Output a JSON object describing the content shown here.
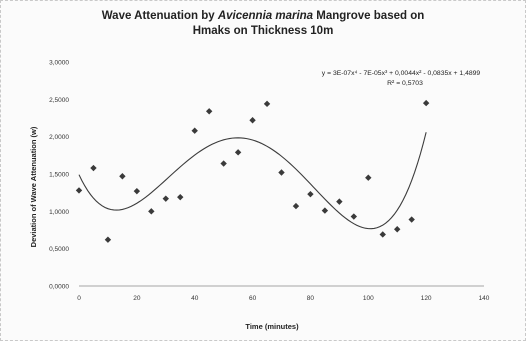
{
  "chart_data": {
    "type": "scatter",
    "title_prefix": "Wave Attenuation by ",
    "title_species": "Avicennia marina",
    "title_suffix": " Mangrove based on",
    "title_line2": "Hmaks on Thickness 10m",
    "xlabel": "Time (minutes)",
    "ylabel": "Deviation of Wave Attenuation (w)",
    "xlim": [
      0,
      140
    ],
    "ylim": [
      0,
      3
    ],
    "x_ticks": [
      0,
      20,
      40,
      60,
      80,
      100,
      120,
      140
    ],
    "x_tick_labels": [
      "0",
      "20",
      "40",
      "60",
      "80",
      "100",
      "120",
      "140"
    ],
    "y_ticks": [
      0,
      0.5,
      1,
      1.5,
      2,
      2.5,
      3
    ],
    "y_tick_labels": [
      "0,0000",
      "0,5000",
      "1,0000",
      "1,5000",
      "2,0000",
      "2,5000",
      "3,0000"
    ],
    "grid": false,
    "points": [
      {
        "x": 0,
        "y": 1.28
      },
      {
        "x": 5,
        "y": 1.58
      },
      {
        "x": 10,
        "y": 0.62
      },
      {
        "x": 15,
        "y": 1.47
      },
      {
        "x": 20,
        "y": 1.27
      },
      {
        "x": 25,
        "y": 1.0
      },
      {
        "x": 30,
        "y": 1.17
      },
      {
        "x": 35,
        "y": 1.19
      },
      {
        "x": 40,
        "y": 2.08
      },
      {
        "x": 45,
        "y": 2.34
      },
      {
        "x": 50,
        "y": 1.64
      },
      {
        "x": 55,
        "y": 1.79
      },
      {
        "x": 60,
        "y": 2.22
      },
      {
        "x": 65,
        "y": 2.44
      },
      {
        "x": 70,
        "y": 1.52
      },
      {
        "x": 75,
        "y": 1.07
      },
      {
        "x": 80,
        "y": 1.23
      },
      {
        "x": 85,
        "y": 1.01
      },
      {
        "x": 90,
        "y": 1.13
      },
      {
        "x": 95,
        "y": 0.93
      },
      {
        "x": 100,
        "y": 1.45
      },
      {
        "x": 105,
        "y": 0.69
      },
      {
        "x": 110,
        "y": 0.76
      },
      {
        "x": 115,
        "y": 0.89
      },
      {
        "x": 120,
        "y": 2.45
      }
    ],
    "trendline": {
      "type": "polynomial",
      "order": 4,
      "equation": "y = 3E-07x⁴ - 7E-05x³ + 0,0044x² - 0,0835x + 1,4899",
      "r2": "R² = 0,5703"
    },
    "colors": {
      "marker": "#3a3a3a",
      "trendline": "#3c3c3c",
      "axis": "#888888"
    }
  }
}
